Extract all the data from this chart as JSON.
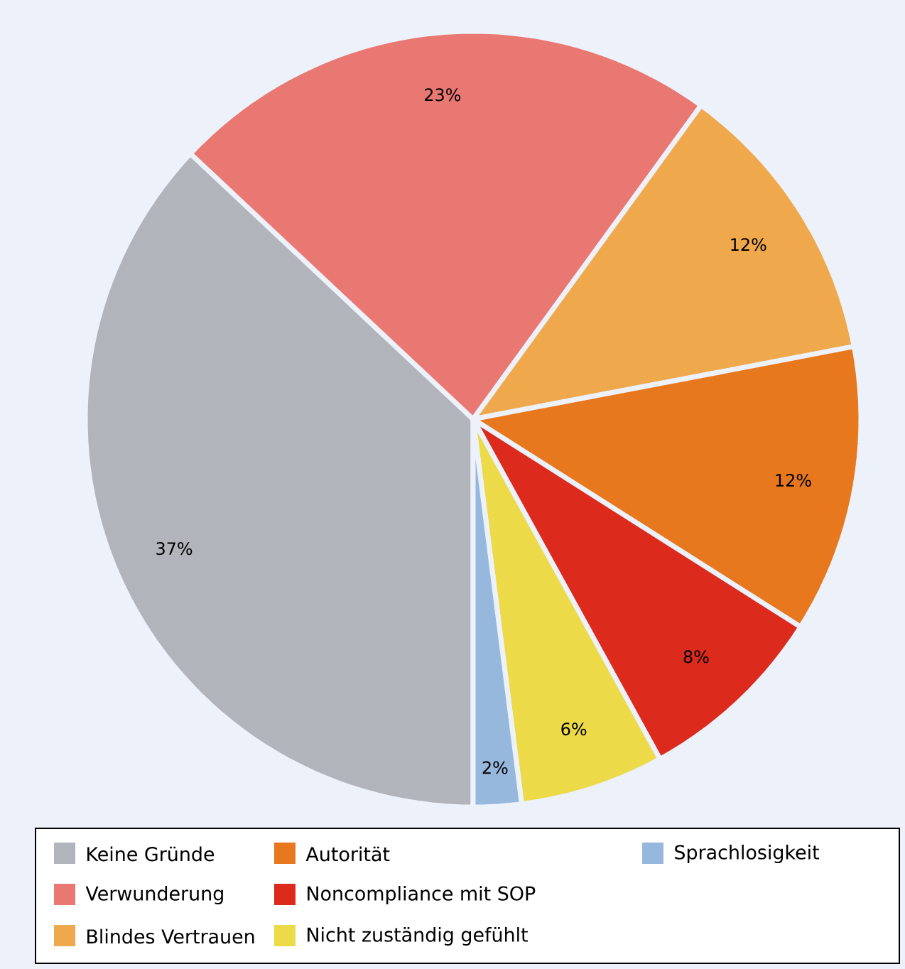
{
  "chart_data": {
    "type": "pie",
    "categories": [
      "Keine Gründe",
      "Verwunderung",
      "Blindes Vertrauen",
      "Autorität",
      "Noncompliance mit SOP",
      "Nicht zuständig gefühlt",
      "Sprachlosigkeit"
    ],
    "values": [
      37,
      23,
      12,
      12,
      8,
      6,
      2
    ],
    "colors": [
      "#b2b4bc",
      "#ea7872",
      "#f0a84c",
      "#e8781e",
      "#dc2a1c",
      "#ecda48",
      "#96b8dc"
    ],
    "value_labels": [
      "37%",
      "23%",
      "12%",
      "12%",
      "8%",
      "6%",
      "2%"
    ],
    "legend": "bottom"
  }
}
